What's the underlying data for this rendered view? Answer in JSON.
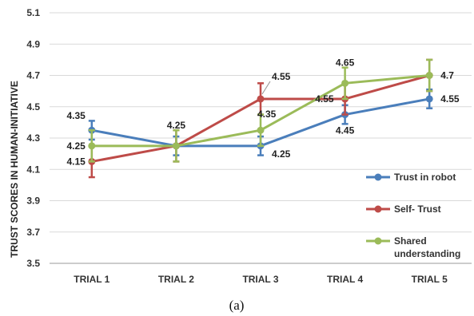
{
  "chart_data": {
    "type": "line",
    "title": "",
    "xlabel": "",
    "ylabel": "TRUST SCORES IN HUMAN-INITIATIVE",
    "categories": [
      "TRIAL 1",
      "TRIAL 2",
      "TRIAL 3",
      "TRIAL 4",
      "TRIAL 5"
    ],
    "ylim": [
      3.5,
      5.1
    ],
    "yticks": [
      "3.5",
      "3.7",
      "3.9",
      "4.1",
      "4.3",
      "4.5",
      "4.7",
      "4.9",
      "5.1"
    ],
    "grid": "horizontal",
    "legend_position": "right",
    "series": [
      {
        "name": "Trust in robot",
        "color": "#4A7EBB",
        "values": [
          4.35,
          4.25,
          4.25,
          4.45,
          4.55
        ],
        "error": [
          0.06,
          0.06,
          0.06,
          0.06,
          0.06
        ],
        "labels": [
          "4.35",
          "",
          "4.25",
          "4.45",
          "4.55"
        ]
      },
      {
        "name": "Self- Trust",
        "color": "#BE4B48",
        "values": [
          4.15,
          4.25,
          4.55,
          4.55,
          4.7
        ],
        "error": [
          0.1,
          0.1,
          0.1,
          0.1,
          0.1
        ],
        "labels": [
          "4.15",
          "",
          "4.55",
          "4.55",
          ""
        ]
      },
      {
        "name": "Shared understanding",
        "legend_lines": [
          "Shared",
          "understanding"
        ],
        "color": "#9BBB59",
        "values": [
          4.25,
          4.25,
          4.35,
          4.65,
          4.7
        ],
        "error": [
          0.1,
          0.1,
          0.1,
          0.1,
          0.1
        ],
        "labels": [
          "4.25",
          "4.25",
          "4.35",
          "4.65",
          "4.7"
        ]
      }
    ]
  },
  "caption": "(a)"
}
